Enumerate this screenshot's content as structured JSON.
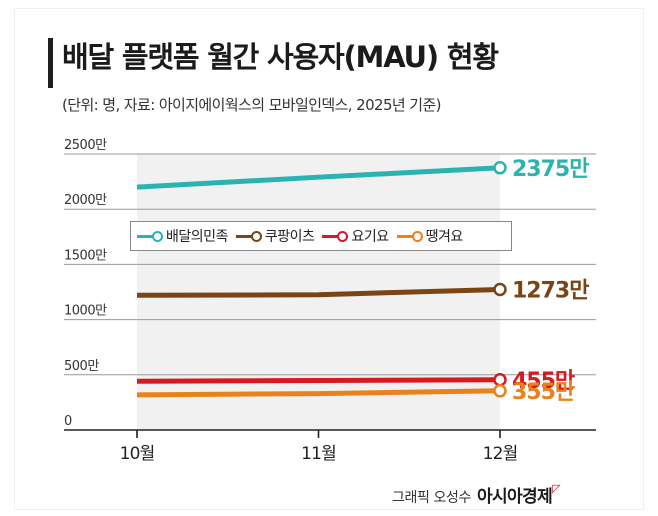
{
  "title": "배달 플랫폼 월간 사용자(MAU) 현황",
  "subtitle": "(단위: 명, 자료: 아이지에이웍스의 모바일인덱스, 2025년 기준)",
  "credit": {
    "byline": "그래픽 오성수",
    "brand": "아시아경제"
  },
  "chart_data": {
    "type": "line",
    "categories": [
      "10월",
      "11월",
      "12월"
    ],
    "yticks": [
      "0",
      "500만",
      "1000만",
      "1500만",
      "2000만",
      "2500만"
    ],
    "ylim": [
      0,
      2500
    ],
    "unit": "만",
    "grid": true,
    "legend_position": "middle",
    "series": [
      {
        "name": "배달의민족",
        "color": "#2bb3b1",
        "values": [
          2200,
          2290,
          2375
        ],
        "end_label": "2375만"
      },
      {
        "name": "쿠팡이츠",
        "color": "#7a4414",
        "values": [
          1220,
          1225,
          1273
        ],
        "end_label": "1273만"
      },
      {
        "name": "요기요",
        "color": "#d71920",
        "values": [
          442,
          448,
          455
        ],
        "end_label": "455만"
      },
      {
        "name": "땡겨요",
        "color": "#e9821d",
        "values": [
          318,
          330,
          355
        ],
        "end_label": "355만"
      }
    ]
  }
}
